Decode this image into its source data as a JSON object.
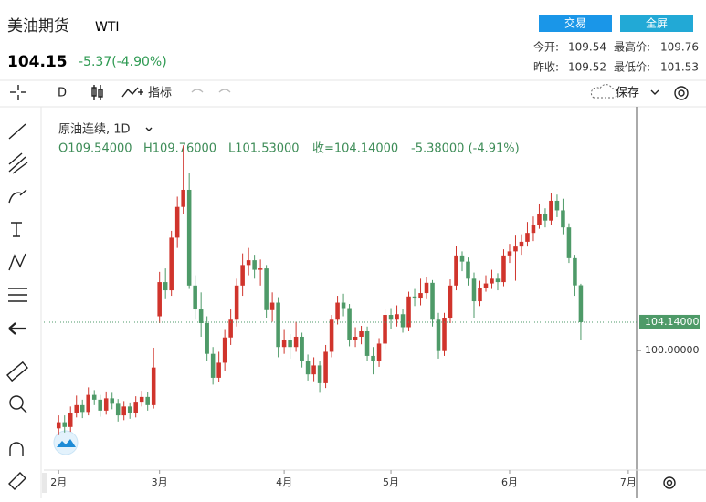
{
  "header": {
    "title": "美油期货",
    "symbol": "WTI",
    "price": "104.15",
    "change": "-5.37(-4.90%)",
    "buttons": [
      "交易",
      "全屏"
    ],
    "stats": [
      {
        "label": "今开:",
        "value": "109.54"
      },
      {
        "label": "最高价:",
        "value": "109.76"
      },
      {
        "label": "昨收:",
        "value": "109.52"
      },
      {
        "label": "最低价:",
        "value": "101.53"
      }
    ]
  },
  "toolbar": {
    "interval": "D",
    "indicators": "指标",
    "save": "保存"
  },
  "legend": {
    "name": "原油连续, 1D",
    "ohlc": [
      "O109.54000",
      "H109.76000",
      "L101.53000",
      "收=104.14000",
      "-5.38000 (-4.91%)"
    ]
  },
  "chart_data": {
    "type": "candlestick",
    "up_color": "#d0342c",
    "down_color": "#4e9a68",
    "xlim": [
      -2.5,
      97.4
    ],
    "xticks": [
      {
        "value": 0,
        "label": "2月"
      },
      {
        "value": 17,
        "label": "3月"
      },
      {
        "value": 38,
        "label": "4月"
      },
      {
        "value": 56,
        "label": "5月"
      },
      {
        "value": 76,
        "label": "6月"
      },
      {
        "value": 96,
        "label": "7月"
      }
    ],
    "ylim": [
      82.9,
      135.25
    ],
    "yticks": [
      {
        "value": 100,
        "label": "100.00000"
      }
    ],
    "last_price": {
      "value": 104.14,
      "label": "104.14000"
    },
    "open": [
      88.6,
      89.5,
      88.8,
      90.8,
      92.0,
      91.0,
      93.5,
      92.8,
      91.2,
      93.0,
      92.2,
      90.5,
      91.8,
      90.8,
      92.5,
      93.2,
      92.0,
      105.0,
      110.0,
      108.8,
      116.5,
      121.0,
      123.5,
      109.5,
      106.0,
      104.0,
      99.5,
      96.0,
      98.2,
      101.9,
      104.5,
      109.5,
      112.5,
      113.2,
      111.8,
      112.0,
      105.9,
      107.0,
      100.5,
      101.5,
      100.5,
      102.0,
      98.5,
      96.5,
      97.8,
      95.2,
      99.8,
      104.5,
      107.0,
      106.2,
      101.5,
      102.0,
      102.8,
      99.2,
      98.5,
      101.0,
      105.2,
      104.5,
      105.3,
      103.4,
      107.9,
      107.6,
      108.4,
      109.9,
      104.5,
      99.9,
      104.8,
      109.5,
      113.9,
      113.0,
      110.5,
      107.2,
      109.2,
      109.8,
      110.5,
      110.0,
      113.9,
      114.5,
      115.2,
      115.9,
      117.2,
      118.4,
      119.9,
      119.0,
      121.9,
      120.5,
      118.0,
      113.5,
      109.54
    ],
    "high": [
      90.5,
      90.5,
      91.8,
      93.4,
      92.8,
      94.6,
      94.2,
      93.5,
      94.0,
      93.8,
      92.9,
      92.6,
      92.4,
      93.3,
      94.1,
      93.9,
      100.4,
      111.5,
      112.0,
      117.5,
      122.5,
      130.0,
      126.0,
      111.0,
      108.5,
      105.0,
      100.5,
      99.8,
      103.0,
      106.0,
      110.5,
      114.2,
      115.0,
      114.0,
      113.3,
      112.5,
      108.5,
      107.8,
      103.0,
      102.4,
      104.2,
      102.6,
      99.4,
      99.0,
      98.5,
      100.8,
      105.2,
      108.0,
      108.3,
      106.8,
      103.4,
      103.6,
      103.5,
      100.5,
      101.8,
      106.0,
      106.2,
      106.6,
      106.0,
      108.6,
      109.0,
      110.5,
      110.8,
      110.3,
      105.5,
      105.5,
      110.4,
      115.3,
      114.5,
      113.6,
      111.4,
      110.2,
      111.0,
      111.8,
      111.3,
      114.8,
      115.6,
      116.8,
      117.0,
      118.8,
      119.6,
      121.5,
      120.8,
      123.0,
      122.8,
      122.2,
      118.6,
      114.0,
      109.76
    ],
    "low": [
      87.6,
      88.0,
      88.1,
      90.2,
      90.1,
      90.5,
      92.0,
      90.3,
      90.6,
      91.4,
      89.6,
      89.8,
      90.0,
      90.2,
      91.8,
      91.2,
      91.5,
      104.0,
      107.5,
      108.0,
      115.0,
      120.0,
      109.0,
      104.5,
      102.0,
      98.5,
      95.0,
      95.4,
      97.0,
      100.8,
      103.5,
      108.0,
      111.0,
      110.5,
      109.5,
      104.8,
      104.2,
      99.0,
      99.5,
      98.8,
      99.8,
      97.5,
      95.6,
      95.5,
      93.8,
      94.5,
      99.0,
      103.8,
      105.0,
      100.6,
      100.5,
      100.9,
      98.5,
      96.5,
      97.6,
      100.2,
      103.2,
      103.5,
      102.6,
      102.8,
      106.5,
      106.6,
      107.5,
      103.5,
      98.8,
      99.2,
      104.0,
      108.8,
      111.6,
      109.5,
      104.8,
      106.5,
      108.6,
      109.0,
      108.8,
      109.4,
      112.8,
      110.2,
      114.0,
      115.2,
      116.0,
      117.8,
      118.0,
      118.4,
      119.5,
      117.0,
      112.8,
      108.0,
      101.53
    ],
    "close": [
      89.5,
      88.8,
      90.8,
      92.0,
      91.0,
      93.5,
      92.8,
      91.2,
      93.0,
      92.2,
      90.5,
      91.8,
      90.8,
      92.5,
      93.2,
      92.0,
      97.5,
      110.0,
      108.8,
      116.5,
      121.0,
      123.5,
      109.5,
      106.0,
      104.0,
      99.5,
      96.0,
      98.2,
      101.9,
      104.5,
      109.5,
      112.5,
      113.2,
      111.8,
      112.0,
      105.9,
      107.0,
      100.5,
      101.5,
      100.5,
      102.0,
      98.5,
      96.5,
      97.8,
      95.2,
      99.8,
      104.5,
      107.0,
      106.2,
      101.5,
      102.0,
      102.8,
      99.2,
      98.5,
      101.0,
      105.2,
      104.5,
      105.3,
      103.4,
      107.9,
      107.6,
      108.4,
      109.9,
      104.5,
      99.9,
      104.8,
      109.5,
      113.9,
      113.0,
      110.5,
      107.2,
      109.2,
      109.8,
      110.5,
      110.0,
      113.9,
      114.5,
      115.2,
      115.9,
      117.2,
      118.4,
      119.9,
      119.0,
      121.9,
      120.5,
      118.0,
      113.5,
      109.52,
      104.14
    ]
  }
}
